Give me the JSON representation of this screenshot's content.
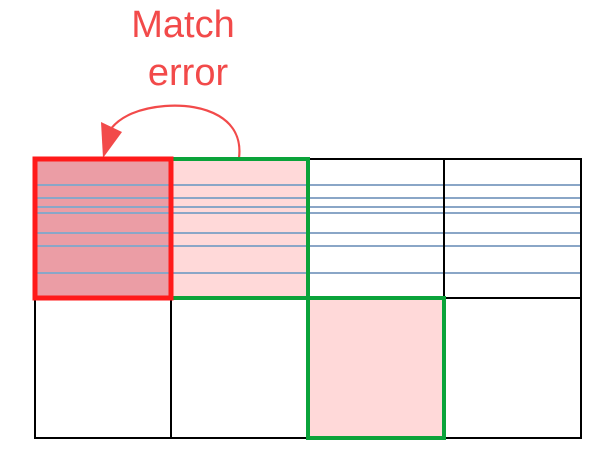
{
  "annotation": {
    "line1": "Match",
    "line2": "error"
  },
  "colors": {
    "error": "#f24a4a",
    "error_border": "#ff1a1a",
    "error_fill": "#eb9da5",
    "match_border": "#0aa33a",
    "match_fill": "#ffd9d9",
    "grid": "#000000",
    "scanline": "#8aa6c7"
  },
  "grid": {
    "rows": 2,
    "cols": 4
  }
}
